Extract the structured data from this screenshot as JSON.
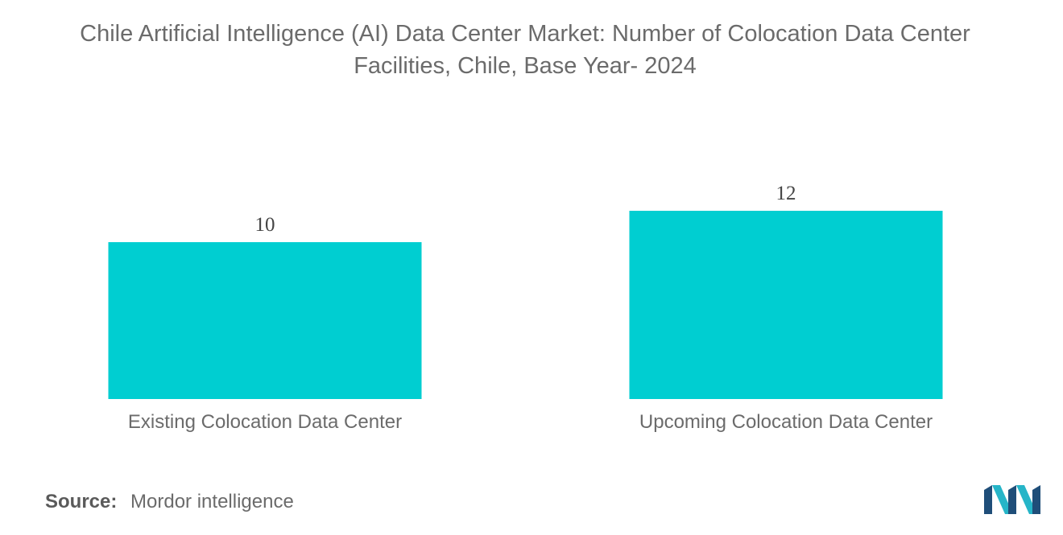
{
  "title_line1": "Chile Artificial Intelligence (AI) Data Center Market: Number of Colocation Data Center",
  "title_line2": "Facilities, Chile, Base Year- 2024",
  "source_label": "Source:",
  "source_text": "Mordor intelligence",
  "colors": {
    "bar": "#00CED1",
    "text": "#6b6b6b",
    "value": "#444444",
    "logo_dark": "#1f4e79",
    "logo_teal": "#26b5c8"
  },
  "chart_data": {
    "type": "bar",
    "categories": [
      "Existing Colocation Data Center",
      "Upcoming Colocation Data Center"
    ],
    "values": [
      10,
      12
    ],
    "data_labels": [
      "10",
      "12"
    ],
    "title": "Chile Artificial Intelligence (AI) Data Center Market: Number of Colocation Data Center Facilities, Chile, Base Year- 2024",
    "xlabel": "",
    "ylabel": "",
    "ylim": [
      0,
      12
    ],
    "grid": false,
    "legend": "none"
  }
}
